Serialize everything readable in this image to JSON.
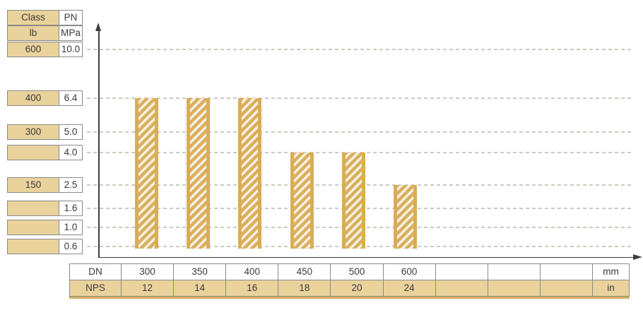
{
  "colors": {
    "bar_gold": "#D9AC58",
    "tan_fill": "#EAD29C",
    "grid_line": "#CDC9C1",
    "border_gray": "#8A8A8A",
    "axis_dark": "#3E3E3E",
    "text": "#3B3B3B"
  },
  "left_table": {
    "col1_header": "Class",
    "col2_header": "PN",
    "col1_unit": "lb",
    "col2_unit": "MPa",
    "rows": [
      {
        "class_lb": "600",
        "pn_mpa": "10.0"
      },
      {
        "class_lb": "400",
        "pn_mpa": "6.4"
      },
      {
        "class_lb": "300",
        "pn_mpa": "5.0"
      },
      {
        "class_lb": "",
        "pn_mpa": "4.0"
      },
      {
        "class_lb": "150",
        "pn_mpa": "2.5"
      },
      {
        "class_lb": "",
        "pn_mpa": "1.6"
      },
      {
        "class_lb": "",
        "pn_mpa": "1.0"
      },
      {
        "class_lb": "",
        "pn_mpa": "0.6"
      }
    ]
  },
  "bottom_table": {
    "row1_label": "DN",
    "row2_label": "NPS",
    "row1_unit": "mm",
    "row2_unit": "in",
    "columns": [
      {
        "dn": "300",
        "nps": "12"
      },
      {
        "dn": "350",
        "nps": "14"
      },
      {
        "dn": "400",
        "nps": "16"
      },
      {
        "dn": "450",
        "nps": "18"
      },
      {
        "dn": "500",
        "nps": "20"
      },
      {
        "dn": "600",
        "nps": "24"
      },
      {
        "dn": "",
        "nps": ""
      },
      {
        "dn": "",
        "nps": ""
      },
      {
        "dn": "",
        "nps": ""
      }
    ]
  },
  "chart_data": {
    "type": "bar",
    "title": "",
    "xlabel": "DN (mm) / NPS (in)",
    "ylabel": "PN (MPa) / Class (lb)",
    "categories_dn_mm": [
      300,
      350,
      400,
      450,
      500,
      600
    ],
    "categories_nps_in": [
      12,
      14,
      16,
      18,
      20,
      24
    ],
    "values_pn_mpa": [
      6.4,
      6.4,
      6.4,
      4.0,
      4.0,
      2.5
    ],
    "y_gridline_levels_mpa": [
      10.0,
      6.4,
      5.0,
      4.0,
      2.5,
      1.6,
      1.0,
      0.6
    ],
    "class_lb_at_level": {
      "10.0": "600",
      "6.4": "400",
      "5.0": "300",
      "2.5": "150"
    },
    "grid": "dashed-horizontal",
    "legend": "none",
    "bar_pattern": "diagonal-hatch",
    "baseline_mpa": 0.6
  }
}
